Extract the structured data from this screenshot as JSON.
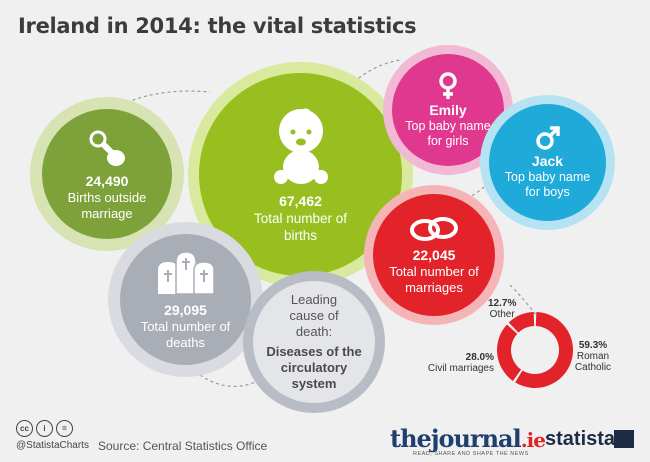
{
  "title": "Ireland in 2014: the vital statistics",
  "bubbles": {
    "births_outside": {
      "value": "24,490",
      "label": "Births outside marriage"
    },
    "births": {
      "value": "67,462",
      "label": "Total number of births"
    },
    "deaths": {
      "value": "29,095",
      "label": "Total number of deaths"
    },
    "cause": {
      "label": "Leading cause of death:",
      "value": "Diseases of the circulatory system"
    },
    "emily": {
      "value": "Emily",
      "label": "Top baby name for girls"
    },
    "jack": {
      "value": "Jack",
      "label": "Top baby name for boys"
    },
    "marriages": {
      "value": "22,045",
      "label": "Total number of marriages"
    }
  },
  "chart_data": {
    "type": "pie",
    "title": "",
    "slices": [
      {
        "label": "Roman Catholic",
        "value": 59.3,
        "display": "59.3%",
        "color": "#e2232a"
      },
      {
        "label": "Civil marriages",
        "value": 28.0,
        "display": "28.0%",
        "color": "#e2232a"
      },
      {
        "label": "Other",
        "value": 12.7,
        "display": "12.7%",
        "color": "#e2232a"
      }
    ]
  },
  "colors": {
    "green": "#98be1f",
    "green_light": "#c9e08a",
    "olive": "#7ea23a",
    "grey": "#a9adb6",
    "pink": "#e1388f",
    "blue": "#1faad9",
    "red": "#e2232a"
  },
  "footer": {
    "cc_icons": [
      "cc-icon",
      "attribution-icon",
      "no-derivatives-icon"
    ],
    "handle": "@StatistaCharts",
    "source": "Source: Central Statistics Office",
    "journal_the": "the",
    "journal_journal": "journal",
    "journal_ie": ".ie",
    "journal_tagline": "READ, SHARE AND SHAPE THE NEWS",
    "statista": "statista"
  }
}
